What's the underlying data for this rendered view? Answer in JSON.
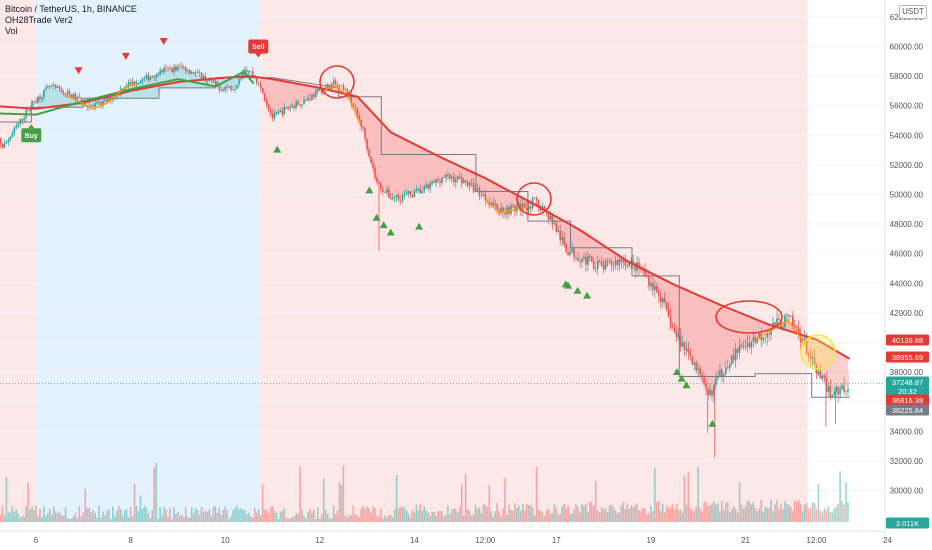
{
  "legend": {
    "symbol_line": "Bitcoin / TetherUS, 1h, BINANCE",
    "indicator_line": "OH28Trade Ver2",
    "volume_line": "Vol"
  },
  "currency_label": "USDT",
  "colors": {
    "up": "#26a69a",
    "down": "#ef5350",
    "buy": "#43a047",
    "sell": "#e53935",
    "trail": "#e53935",
    "fast_green": "#43a047",
    "step": "#787b86",
    "bear_bg": "#fde8e8",
    "bull_bg": "#e3f2fd",
    "highlight": "#fbe34a"
  },
  "chart_data": {
    "type": "candlestick",
    "title": "Bitcoin / TetherUS, 1h, BINANCE",
    "ylim": [
      28500,
      63500
    ],
    "y_ticks": [
      30000,
      32000,
      34000,
      36000,
      38000,
      40000,
      42000,
      44000,
      46000,
      48000,
      50000,
      52000,
      54000,
      56000,
      58000,
      60000,
      62000
    ],
    "y_tick_labels": [
      "30000.00",
      "32000.00",
      "34000.00",
      "36000.00",
      "38000.00",
      "40000.00",
      "42000.00",
      "44000.00",
      "46000.00",
      "48000.00",
      "50000.00",
      "52000.00",
      "54000.00",
      "56000.00",
      "58000.00",
      "60000.00",
      "62000.00"
    ],
    "x_ticks": [
      "6",
      "8",
      "10",
      "12",
      "14",
      "12:00",
      "17",
      "19",
      "21",
      "12:00",
      "24"
    ],
    "price_path": [
      [
        5.0,
        54800
      ],
      [
        5.3,
        53200
      ],
      [
        5.6,
        54600
      ],
      [
        5.9,
        56100
      ],
      [
        6.3,
        57300
      ],
      [
        6.8,
        56600
      ],
      [
        7.2,
        55900
      ],
      [
        7.5,
        56300
      ],
      [
        7.9,
        57400
      ],
      [
        8.3,
        57800
      ],
      [
        8.7,
        58400
      ],
      [
        9.1,
        58600
      ],
      [
        9.5,
        58000
      ],
      [
        9.9,
        57200
      ],
      [
        10.2,
        57300
      ],
      [
        10.4,
        58600
      ],
      [
        10.6,
        58100
      ],
      [
        10.8,
        56800
      ],
      [
        11.0,
        55200
      ],
      [
        11.3,
        55800
      ],
      [
        11.7,
        56400
      ],
      [
        12.0,
        57000
      ],
      [
        12.3,
        57500
      ],
      [
        12.6,
        56800
      ],
      [
        12.9,
        54500
      ],
      [
        13.2,
        50800
      ],
      [
        13.5,
        49800
      ],
      [
        13.8,
        49900
      ],
      [
        14.2,
        50300
      ],
      [
        14.6,
        51200
      ],
      [
        15.0,
        51000
      ],
      [
        15.4,
        50100
      ],
      [
        15.8,
        48900
      ],
      [
        16.2,
        49100
      ],
      [
        16.6,
        49500
      ],
      [
        16.9,
        48300
      ],
      [
        17.2,
        46300
      ],
      [
        17.6,
        45600
      ],
      [
        18.0,
        45100
      ],
      [
        18.4,
        45600
      ],
      [
        18.8,
        44900
      ],
      [
        19.2,
        43100
      ],
      [
        19.5,
        40600
      ],
      [
        19.9,
        38800
      ],
      [
        20.2,
        36300
      ],
      [
        20.6,
        38600
      ],
      [
        21.0,
        39900
      ],
      [
        21.3,
        40400
      ],
      [
        21.6,
        41100
      ],
      [
        21.9,
        41600
      ],
      [
        22.2,
        40300
      ],
      [
        22.5,
        37900
      ],
      [
        22.8,
        36600
      ],
      [
        23.0,
        36800
      ],
      [
        23.2,
        37250
      ]
    ],
    "series": [
      {
        "name": "OH28Trade Ver2 trailing line",
        "points": [
          [
            5.0,
            56000
          ],
          [
            6.0,
            55800
          ],
          [
            7.0,
            56200
          ],
          [
            8.0,
            57000
          ],
          [
            9.0,
            57600
          ],
          [
            10.0,
            57900
          ],
          [
            10.5,
            58000
          ],
          [
            11.0,
            57800
          ],
          [
            12.0,
            57200
          ],
          [
            12.8,
            56600
          ],
          [
            13.5,
            54200
          ],
          [
            14.5,
            52600
          ],
          [
            15.5,
            51100
          ],
          [
            16.5,
            49400
          ],
          [
            17.5,
            47600
          ],
          [
            18.5,
            45500
          ],
          [
            19.5,
            43900
          ],
          [
            20.5,
            42500
          ],
          [
            21.5,
            41200
          ],
          [
            22.5,
            40200
          ],
          [
            23.2,
            38900
          ]
        ]
      },
      {
        "name": "OH28Trade Ver2 fast line",
        "points": [
          [
            5.0,
            55500
          ],
          [
            6.0,
            55400
          ],
          [
            7.0,
            56300
          ],
          [
            8.0,
            57100
          ],
          [
            9.0,
            57800
          ],
          [
            9.8,
            57300
          ],
          [
            10.4,
            58300
          ],
          [
            10.6,
            57500
          ]
        ]
      },
      {
        "name": "OH28Trade Ver2 step line",
        "points": [
          [
            5.0,
            54900
          ],
          [
            5.9,
            54900
          ],
          [
            5.9,
            55900
          ],
          [
            7.0,
            55900
          ],
          [
            7.0,
            56500
          ],
          [
            8.6,
            56500
          ],
          [
            8.6,
            57200
          ],
          [
            9.8,
            57200
          ],
          [
            9.8,
            57900
          ],
          [
            10.6,
            57900
          ],
          [
            11.0,
            57900
          ],
          [
            12.4,
            57200
          ],
          [
            12.4,
            56600
          ],
          [
            13.3,
            56600
          ],
          [
            13.3,
            52700
          ],
          [
            15.3,
            52700
          ],
          [
            15.3,
            50200
          ],
          [
            16.4,
            50200
          ],
          [
            16.4,
            48200
          ],
          [
            17.3,
            48200
          ],
          [
            17.3,
            46400
          ],
          [
            18.6,
            46400
          ],
          [
            18.6,
            44500
          ],
          [
            19.6,
            44500
          ],
          [
            19.6,
            37700
          ],
          [
            21.2,
            37700
          ],
          [
            21.2,
            37900
          ],
          [
            22.4,
            37900
          ],
          [
            22.4,
            36300
          ],
          [
            23.2,
            36300
          ]
        ]
      }
    ],
    "signals": {
      "buy_label": "Buy",
      "sell_label": "Sell",
      "buy_at": [
        5.9,
        54000
      ],
      "sell_at": [
        10.7,
        60000
      ]
    },
    "price_labels": [
      {
        "value": "40139.88",
        "color": "#e53935"
      },
      {
        "value": "38955.69",
        "color": "#e53935"
      },
      {
        "value": "37248.87",
        "color": "#26a69a"
      },
      {
        "value": "20:32",
        "color": "#26a69a"
      },
      {
        "value": "36816.38",
        "color": "#e53935"
      },
      {
        "value": "36225.84",
        "color": "#787b86"
      },
      {
        "value": "3.011K",
        "color": "#26a69a"
      }
    ]
  }
}
